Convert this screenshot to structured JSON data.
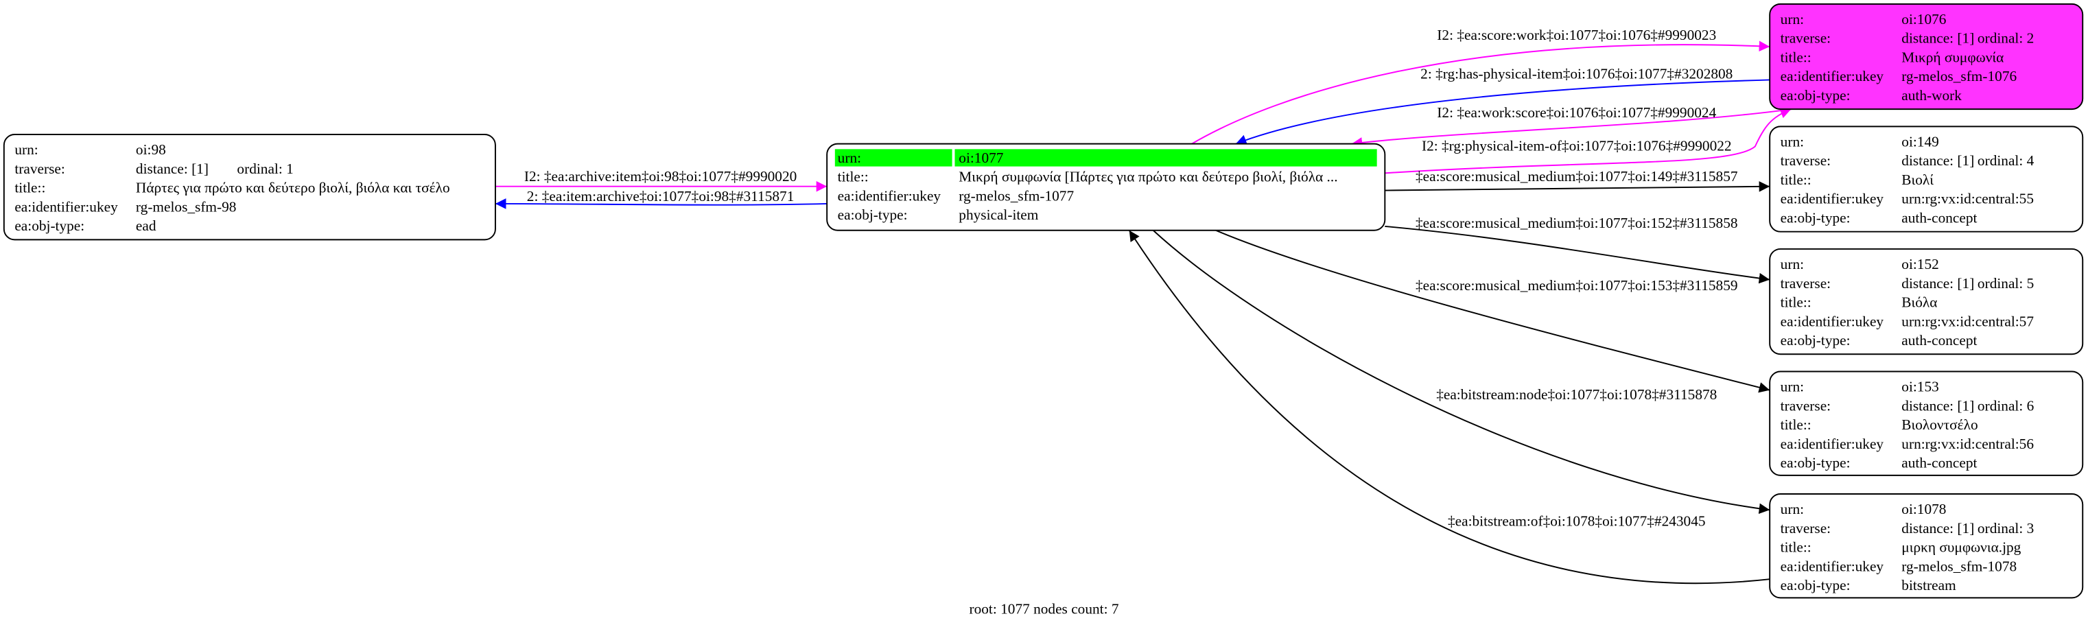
{
  "nodes": [
    {
      "rows": [
        [
          "urn:",
          "oi:98"
        ],
        [
          "traverse:",
          "distance: [1]",
          "ordinal: 1"
        ],
        [
          "title::",
          "Πάρτες για πρώτο και δεύτερο βιολί, βιόλα και τσέλο"
        ],
        [
          "ea:identifier:ukey",
          "rg-melos_sfm-98"
        ],
        [
          "ea:obj-type:",
          "ead"
        ]
      ]
    },
    {
      "rows": [
        [
          "urn:",
          "oi:1077"
        ],
        [
          "title::",
          "Μικρή συμφωνία [Πάρτες για πρώτο και δεύτερο βιολί, βιόλα ..."
        ],
        [
          "ea:identifier:ukey",
          "rg-melos_sfm-1077"
        ],
        [
          "ea:obj-type:",
          "physical-item"
        ]
      ]
    },
    {
      "rows": [
        [
          "urn:",
          "oi:1076"
        ],
        [
          "traverse:",
          "distance: [1]",
          "ordinal: 2"
        ],
        [
          "title::",
          "Μικρή συμφωνία"
        ],
        [
          "ea:identifier:ukey",
          "rg-melos_sfm-1076"
        ],
        [
          "ea:obj-type:",
          "auth-work"
        ]
      ]
    },
    {
      "rows": [
        [
          "urn:",
          "oi:149"
        ],
        [
          "traverse:",
          "distance: [1]",
          "ordinal: 4"
        ],
        [
          "title::",
          "Βιολί"
        ],
        [
          "ea:identifier:ukey",
          "urn:rg:vx:id:central:55"
        ],
        [
          "ea:obj-type:",
          "auth-concept"
        ]
      ]
    },
    {
      "rows": [
        [
          "urn:",
          "oi:152"
        ],
        [
          "traverse:",
          "distance: [1]",
          "ordinal: 5"
        ],
        [
          "title::",
          "Βιόλα"
        ],
        [
          "ea:identifier:ukey",
          "urn:rg:vx:id:central:57"
        ],
        [
          "ea:obj-type:",
          "auth-concept"
        ]
      ]
    },
    {
      "rows": [
        [
          "urn:",
          "oi:153"
        ],
        [
          "traverse:",
          "distance: [1]",
          "ordinal: 6"
        ],
        [
          "title::",
          "Βιολοντσέλο"
        ],
        [
          "ea:identifier:ukey",
          "urn:rg:vx:id:central:56"
        ],
        [
          "ea:obj-type:",
          "auth-concept"
        ]
      ]
    },
    {
      "rows": [
        [
          "urn:",
          "oi:1078"
        ],
        [
          "traverse:",
          "distance: [1]",
          "ordinal: 3"
        ],
        [
          "title::",
          "μιρκη συμφωνια.jpg"
        ],
        [
          "ea:identifier:ukey",
          "rg-melos_sfm-1078"
        ],
        [
          "ea:obj-type:",
          "bitstream"
        ]
      ]
    }
  ],
  "edges": [
    {
      "label": "I2: ‡ea:archive:item‡oi:98‡oi:1077‡#9990020"
    },
    {
      "label": "2: ‡ea:item:archive‡oi:1077‡oi:98‡#3115871"
    },
    {
      "label": "I2: ‡ea:score:work‡oi:1077‡oi:1076‡#9990023"
    },
    {
      "label": "2: ‡rg:has-physical-item‡oi:1076‡oi:1077‡#3202808"
    },
    {
      "label": "I2: ‡ea:work:score‡oi:1076‡oi:1077‡#9990024"
    },
    {
      "label": "I2: ‡rg:physical-item-of‡oi:1077‡oi:1076‡#9990022"
    },
    {
      "label": "‡ea:score:musical_medium‡oi:1077‡oi:149‡#3115857"
    },
    {
      "label": "‡ea:score:musical_medium‡oi:1077‡oi:152‡#3115858"
    },
    {
      "label": "‡ea:score:musical_medium‡oi:1077‡oi:153‡#3115859"
    },
    {
      "label": "‡ea:bitstream:node‡oi:1077‡oi:1078‡#3115878"
    },
    {
      "label": "‡ea:bitstream:of‡oi:1078‡oi:1077‡#243045"
    }
  ],
  "footer": "root: 1077 nodes count: 7"
}
